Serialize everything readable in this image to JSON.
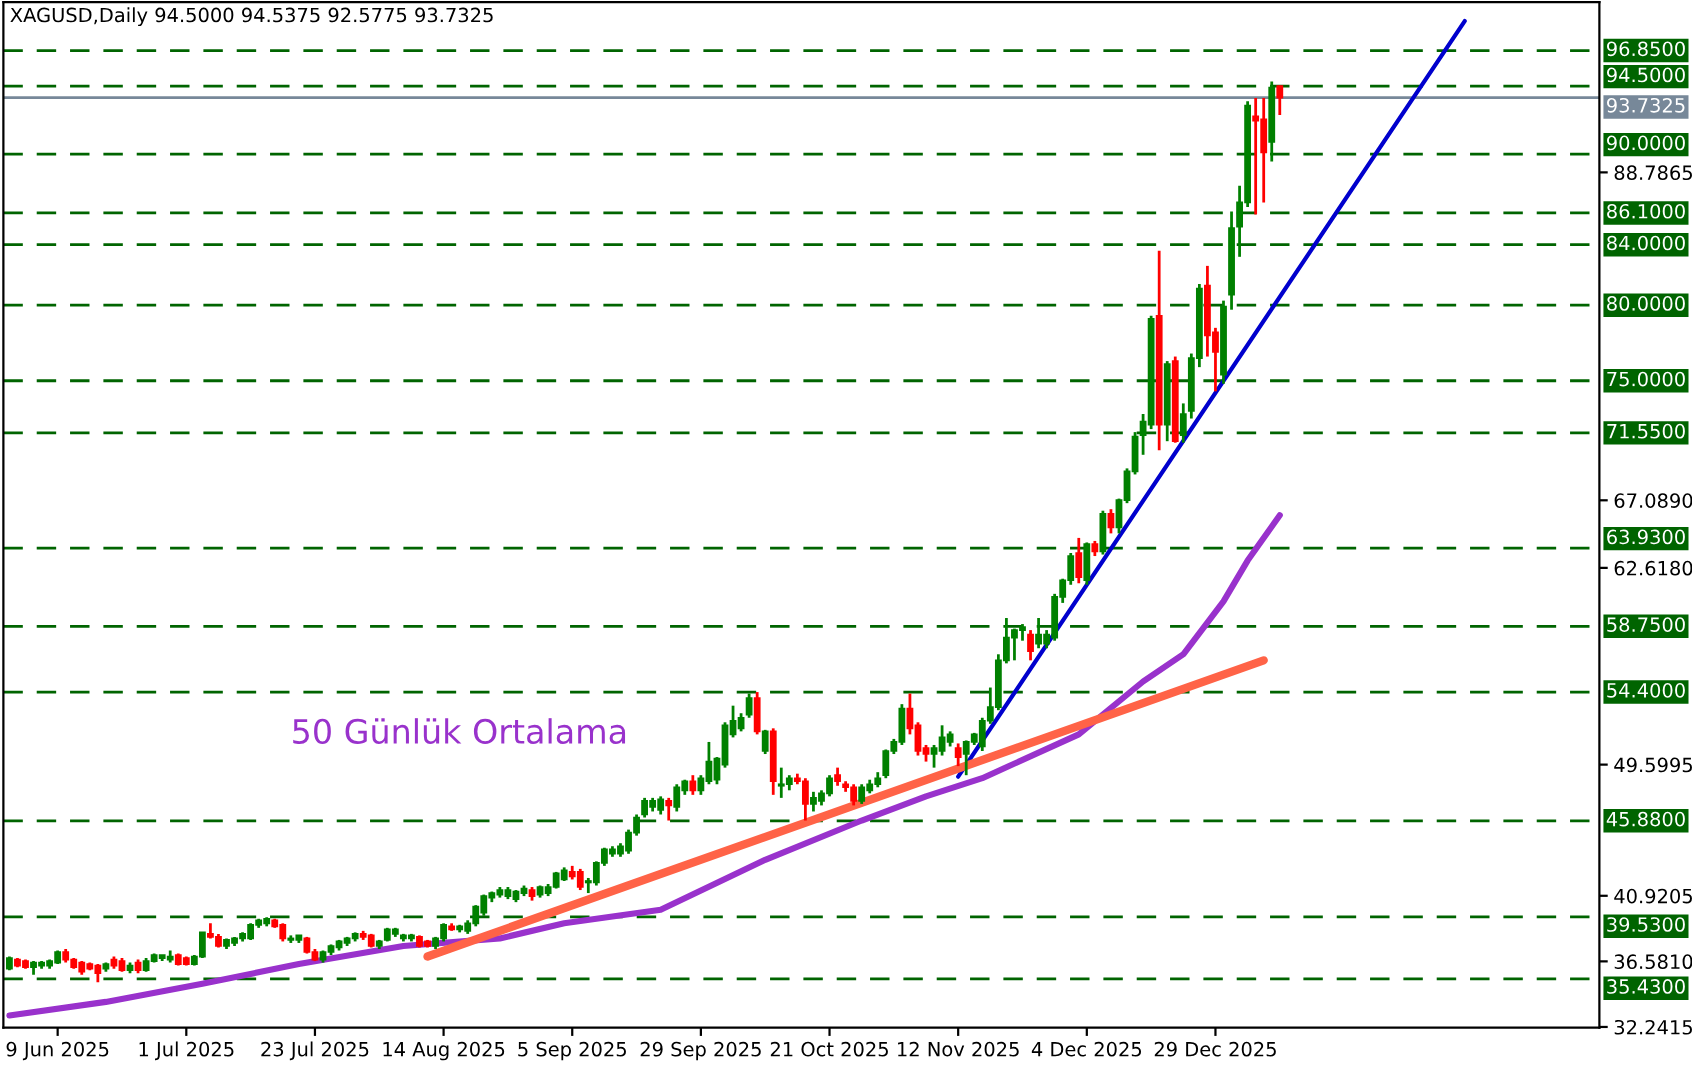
{
  "chart_data": {
    "type": "candlestick",
    "title": "XAGUSD,Daily 94.5000 94.5375 92.5775 93.7325",
    "categories": [
      null,
      null,
      null,
      null,
      null,
      null,
      "9 Jun 2025",
      null,
      null,
      null,
      null,
      null,
      null,
      null,
      null,
      null,
      null,
      null,
      null,
      null,
      null,
      null,
      "1 Jul 2025",
      null,
      null,
      null,
      null,
      null,
      null,
      null,
      null,
      null,
      null,
      null,
      null,
      null,
      null,
      null,
      "23 Jul 2025",
      null,
      null,
      null,
      null,
      null,
      null,
      null,
      null,
      null,
      null,
      null,
      null,
      null,
      null,
      null,
      "14 Aug 2025",
      null,
      null,
      null,
      null,
      null,
      null,
      null,
      null,
      null,
      null,
      null,
      null,
      null,
      null,
      null,
      "5 Sep 2025",
      null,
      null,
      null,
      null,
      null,
      null,
      null,
      null,
      null,
      null,
      null,
      null,
      null,
      null,
      null,
      "29 Sep 2025",
      null,
      null,
      null,
      null,
      null,
      null,
      null,
      null,
      null,
      null,
      null,
      null,
      null,
      null,
      null,
      "21 Oct 2025",
      null,
      null,
      null,
      null,
      null,
      null,
      null,
      null,
      null,
      null,
      null,
      null,
      null,
      null,
      null,
      "12 Nov 2025",
      null,
      null,
      null,
      null,
      null,
      null,
      null,
      null,
      null,
      null,
      null,
      null,
      null,
      null,
      null,
      "4 Dec 2025",
      null,
      null,
      null,
      null,
      null,
      null,
      null,
      null,
      null,
      null,
      null,
      null,
      null,
      null,
      null,
      "29 Dec 2025",
      null,
      null,
      null,
      null,
      null,
      null,
      null,
      null,
      null,
      null,
      null,
      null,
      null,
      null,
      null,
      null,
      null,
      null,
      null,
      null,
      null,
      null,
      null,
      null,
      null,
      null,
      null,
      null,
      null,
      null,
      null,
      null,
      null,
      null,
      null,
      null,
      null,
      null,
      null,
      null,
      null,
      null,
      null,
      null,
      null,
      null,
      null
    ],
    "ohlc": [
      [
        36.1,
        36.9,
        36.0,
        36.8
      ],
      [
        36.7,
        36.8,
        36.2,
        36.3
      ],
      [
        36.6,
        36.7,
        36.1,
        36.2
      ],
      [
        36.2,
        36.6,
        35.7,
        36.5
      ],
      [
        36.3,
        36.6,
        36.1,
        36.5
      ],
      [
        36.3,
        36.7,
        36.1,
        36.6
      ],
      [
        36.5,
        37.3,
        36.4,
        37.2
      ],
      [
        37.2,
        37.4,
        36.5,
        36.7
      ],
      [
        36.7,
        36.8,
        36.1,
        36.2
      ],
      [
        36.5,
        36.6,
        35.7,
        35.9
      ],
      [
        36.4,
        36.5,
        36.0,
        36.1
      ],
      [
        36.3,
        36.4,
        35.2,
        35.8
      ],
      [
        36.1,
        36.5,
        35.9,
        36.4
      ],
      [
        36.7,
        36.9,
        36.1,
        36.3
      ],
      [
        36.6,
        36.8,
        35.9,
        36.0
      ],
      [
        36.0,
        36.5,
        35.8,
        36.3
      ],
      [
        36.5,
        36.7,
        35.8,
        36.0
      ],
      [
        36.0,
        36.8,
        35.9,
        36.6
      ],
      [
        36.6,
        37.1,
        36.5,
        37.0
      ],
      [
        36.8,
        37.0,
        36.6,
        37.0
      ],
      [
        36.7,
        37.3,
        36.5,
        36.9
      ],
      [
        37.0,
        37.1,
        36.3,
        36.4
      ],
      [
        36.8,
        36.9,
        36.3,
        36.4
      ],
      [
        36.4,
        37.0,
        36.3,
        36.9
      ],
      [
        36.9,
        38.5,
        36.8,
        38.5
      ],
      [
        38.4,
        39.1,
        38.1,
        38.2
      ],
      [
        38.2,
        38.4,
        37.5,
        37.6
      ],
      [
        37.6,
        38.1,
        37.4,
        38.0
      ],
      [
        37.8,
        38.2,
        37.6,
        38.1
      ],
      [
        38.1,
        38.5,
        37.9,
        38.4
      ],
      [
        38.1,
        39.1,
        38.0,
        39.0
      ],
      [
        39.0,
        39.4,
        38.8,
        39.3
      ],
      [
        39.1,
        39.5,
        38.9,
        39.4
      ],
      [
        39.3,
        39.4,
        38.8,
        38.9
      ],
      [
        39.0,
        39.1,
        37.9,
        38.1
      ],
      [
        38.0,
        38.3,
        37.8,
        38.1
      ],
      [
        38.0,
        38.3,
        37.8,
        38.3
      ],
      [
        38.1,
        38.2,
        37.1,
        37.2
      ],
      [
        37.2,
        37.4,
        36.6,
        36.7
      ],
      [
        36.7,
        37.3,
        36.5,
        37.2
      ],
      [
        37.2,
        37.7,
        37.0,
        37.6
      ],
      [
        37.5,
        38.0,
        37.3,
        37.9
      ],
      [
        37.8,
        38.2,
        37.6,
        38.1
      ],
      [
        38.1,
        38.5,
        37.9,
        38.4
      ],
      [
        38.4,
        38.6,
        38.0,
        38.2
      ],
      [
        38.3,
        38.4,
        37.5,
        37.6
      ],
      [
        37.6,
        38.0,
        37.4,
        37.9
      ],
      [
        38.0,
        38.8,
        37.9,
        38.7
      ],
      [
        38.4,
        38.8,
        38.2,
        38.7
      ],
      [
        38.1,
        38.4,
        37.9,
        38.3
      ],
      [
        38.1,
        38.4,
        37.9,
        38.3
      ],
      [
        38.2,
        38.3,
        37.5,
        37.6
      ],
      [
        37.9,
        38.0,
        37.5,
        37.6
      ],
      [
        37.6,
        38.2,
        37.4,
        38.1
      ],
      [
        38.1,
        39.1,
        37.9,
        39.0
      ],
      [
        38.9,
        39.1,
        38.6,
        38.7
      ],
      [
        38.7,
        39.0,
        38.5,
        38.9
      ],
      [
        38.6,
        39.3,
        38.4,
        39.1
      ],
      [
        39.1,
        40.3,
        38.9,
        40.2
      ],
      [
        39.8,
        41.0,
        39.6,
        40.9
      ],
      [
        40.8,
        41.2,
        40.5,
        41.1
      ],
      [
        41.0,
        41.5,
        40.8,
        41.3
      ],
      [
        40.9,
        41.5,
        40.7,
        41.3
      ],
      [
        40.7,
        41.3,
        40.5,
        41.2
      ],
      [
        41.1,
        41.6,
        40.9,
        41.4
      ],
      [
        41.3,
        41.5,
        40.6,
        40.9
      ],
      [
        41.0,
        41.6,
        40.8,
        41.5
      ],
      [
        41.1,
        41.7,
        40.9,
        41.5
      ],
      [
        41.5,
        42.5,
        41.4,
        42.4
      ],
      [
        42.0,
        42.8,
        41.9,
        42.6
      ],
      [
        42.5,
        42.9,
        42.0,
        42.2
      ],
      [
        42.5,
        42.7,
        41.3,
        41.5
      ],
      [
        41.9,
        42.1,
        41.1,
        41.8
      ],
      [
        41.8,
        43.2,
        41.6,
        43.1
      ],
      [
        43.1,
        44.1,
        42.9,
        44.0
      ],
      [
        43.7,
        44.2,
        43.5,
        44.0
      ],
      [
        43.7,
        44.4,
        43.5,
        44.2
      ],
      [
        43.9,
        45.3,
        43.7,
        45.1
      ],
      [
        45.1,
        46.3,
        44.9,
        46.1
      ],
      [
        46.3,
        47.4,
        46.1,
        47.2
      ],
      [
        46.8,
        47.4,
        46.5,
        47.2
      ],
      [
        46.6,
        47.5,
        46.3,
        47.3
      ],
      [
        47.2,
        47.4,
        45.9,
        46.9
      ],
      [
        46.8,
        48.3,
        46.5,
        48.1
      ],
      [
        47.9,
        48.6,
        47.6,
        48.5
      ],
      [
        48.5,
        48.9,
        47.6,
        47.9
      ],
      [
        47.9,
        48.9,
        47.6,
        48.7
      ],
      [
        48.5,
        51.1,
        48.3,
        49.8
      ],
      [
        48.6,
        50.1,
        48.3,
        50.0
      ],
      [
        49.6,
        52.4,
        49.4,
        52.2
      ],
      [
        51.6,
        53.5,
        51.4,
        52.5
      ],
      [
        52.0,
        53.0,
        51.8,
        52.7
      ],
      [
        52.9,
        54.3,
        52.7,
        54.0
      ],
      [
        54.0,
        54.4,
        51.6,
        51.8
      ],
      [
        50.5,
        51.9,
        50.3,
        51.8
      ],
      [
        51.8,
        52.0,
        47.6,
        48.5
      ],
      [
        48.2,
        49.4,
        47.4,
        48.3
      ],
      [
        48.3,
        48.9,
        47.9,
        48.7
      ],
      [
        48.7,
        49.0,
        48.3,
        48.5
      ],
      [
        48.5,
        48.7,
        45.9,
        47.0
      ],
      [
        47.0,
        47.8,
        46.5,
        47.4
      ],
      [
        47.2,
        47.9,
        46.9,
        47.7
      ],
      [
        47.7,
        48.9,
        47.5,
        48.7
      ],
      [
        48.9,
        49.4,
        48.2,
        48.5
      ],
      [
        48.3,
        48.5,
        47.8,
        48.1
      ],
      [
        48.1,
        48.3,
        46.9,
        47.2
      ],
      [
        47.2,
        48.3,
        47.0,
        48.1
      ],
      [
        47.9,
        48.6,
        47.7,
        48.3
      ],
      [
        48.3,
        49.1,
        48.1,
        48.7
      ],
      [
        48.9,
        50.6,
        48.7,
        50.5
      ],
      [
        50.5,
        51.3,
        50.3,
        51.1
      ],
      [
        51.1,
        53.6,
        50.9,
        53.3
      ],
      [
        53.3,
        54.3,
        51.6,
        52.0
      ],
      [
        52.2,
        52.4,
        50.2,
        50.5
      ],
      [
        50.7,
        50.9,
        49.8,
        50.3
      ],
      [
        50.3,
        50.9,
        49.4,
        50.7
      ],
      [
        50.5,
        52.2,
        50.2,
        51.4
      ],
      [
        51.1,
        51.8,
        50.8,
        51.6
      ],
      [
        50.7,
        51.0,
        49.5,
        50.1
      ],
      [
        50.3,
        51.2,
        48.9,
        51.1
      ],
      [
        51.1,
        51.7,
        50.9,
        51.6
      ],
      [
        50.8,
        52.7,
        50.5,
        52.5
      ],
      [
        52.5,
        54.7,
        52.3,
        53.4
      ],
      [
        53.4,
        56.9,
        53.2,
        56.5
      ],
      [
        56.5,
        59.3,
        56.3,
        58.0
      ],
      [
        58.0,
        58.6,
        56.5,
        58.5
      ],
      [
        58.5,
        58.9,
        57.8,
        58.7
      ],
      [
        58.2,
        58.5,
        56.5,
        57.1
      ],
      [
        57.6,
        59.3,
        57.3,
        58.2
      ],
      [
        57.6,
        58.5,
        57.3,
        58.2
      ],
      [
        58.0,
        60.9,
        57.8,
        60.7
      ],
      [
        60.7,
        61.9,
        60.3,
        61.8
      ],
      [
        61.8,
        63.6,
        61.5,
        63.4
      ],
      [
        63.6,
        64.6,
        61.6,
        62.0
      ],
      [
        61.8,
        64.3,
        61.5,
        64.2
      ],
      [
        64.2,
        64.4,
        63.4,
        63.7
      ],
      [
        63.7,
        66.4,
        63.5,
        66.2
      ],
      [
        66.2,
        66.5,
        64.9,
        65.3
      ],
      [
        65.3,
        67.2,
        64.9,
        67.1
      ],
      [
        67.1,
        69.2,
        66.9,
        69.0
      ],
      [
        69.0,
        71.6,
        68.8,
        71.3
      ],
      [
        71.4,
        72.8,
        70.1,
        72.3
      ],
      [
        72.1,
        79.3,
        71.8,
        79.1
      ],
      [
        79.3,
        83.6,
        70.4,
        72.1
      ],
      [
        72.1,
        76.3,
        71.0,
        76.1
      ],
      [
        76.3,
        76.6,
        70.9,
        71.0
      ],
      [
        71.4,
        73.5,
        70.9,
        72.8
      ],
      [
        73.0,
        76.8,
        72.5,
        76.5
      ],
      [
        76.5,
        81.4,
        75.9,
        81.1
      ],
      [
        81.3,
        82.6,
        76.6,
        78.0
      ],
      [
        78.2,
        78.5,
        74.3,
        76.9
      ],
      [
        75.4,
        80.3,
        74.8,
        79.9
      ],
      [
        80.7,
        86.2,
        79.7,
        85.1
      ],
      [
        85.2,
        87.9,
        83.2,
        86.8
      ],
      [
        86.8,
        93.5,
        86.5,
        93.2
      ],
      [
        92.5,
        93.7,
        86.0,
        92.2
      ],
      [
        92.3,
        93.7,
        86.8,
        90.1
      ],
      [
        90.8,
        94.8,
        89.5,
        94.4
      ],
      [
        94.5,
        94.5375,
        92.5775,
        93.7325
      ],
      null,
      null,
      null,
      null,
      null,
      null,
      null,
      null,
      null,
      null,
      null,
      null,
      null,
      null,
      null,
      null,
      null,
      null,
      null,
      null,
      null,
      null,
      null,
      null,
      null,
      null,
      null,
      null,
      null,
      null,
      null,
      null,
      null,
      null,
      null,
      null,
      null,
      null,
      null
    ],
    "colors": [
      "#008000",
      "#ff0000",
      "#ff0000",
      "#008000",
      "#008000",
      "#008000",
      "#008000",
      "#ff0000",
      "#ff0000",
      "#ff0000",
      "#ff0000",
      "#ff0000",
      "#008000",
      "#ff0000",
      "#ff0000",
      "#008000",
      "#ff0000",
      "#008000",
      "#008000",
      "#008000",
      "#008000",
      "#ff0000",
      "#ff0000",
      "#008000",
      "#008000",
      "#ff0000",
      "#ff0000",
      "#008000",
      "#008000",
      "#008000",
      "#008000",
      "#008000",
      "#008000",
      "#ff0000",
      "#ff0000",
      "#008000",
      "#008000",
      "#ff0000",
      "#ff0000",
      "#008000",
      "#008000",
      "#008000",
      "#008000",
      "#008000",
      "#ff0000",
      "#ff0000",
      "#008000",
      "#008000",
      "#008000",
      "#008000",
      "#008000",
      "#ff0000",
      "#ff0000",
      "#008000",
      "#008000",
      "#ff0000",
      "#008000",
      "#008000",
      "#008000",
      "#008000",
      "#008000",
      "#008000",
      "#008000",
      "#008000",
      "#008000",
      "#ff0000",
      "#008000",
      "#008000",
      "#008000",
      "#008000",
      "#ff0000",
      "#ff0000",
      "#008000",
      "#008000",
      "#008000",
      "#008000",
      "#008000",
      "#008000",
      "#008000",
      "#008000",
      "#008000",
      "#008000",
      "#ff0000",
      "#008000",
      "#008000",
      "#ff0000",
      "#008000",
      "#008000",
      "#008000",
      "#008000",
      "#008000",
      "#008000",
      "#008000",
      "#ff0000",
      "#008000",
      "#ff0000",
      "#008000",
      "#008000",
      "#ff0000",
      "#ff0000",
      "#008000",
      "#008000",
      "#008000",
      "#ff0000",
      "#ff0000",
      "#ff0000",
      "#008000",
      "#008000",
      "#008000",
      "#008000",
      "#008000",
      "#008000",
      "#ff0000",
      "#ff0000",
      "#ff0000",
      "#008000",
      "#008000",
      "#008000",
      "#ff0000",
      "#008000",
      "#008000",
      "#008000",
      "#008000",
      "#008000",
      "#008000",
      "#008000",
      "#008000",
      "#ff0000",
      "#008000",
      "#008000",
      "#008000",
      "#008000",
      "#008000",
      "#ff0000",
      "#008000",
      "#ff0000",
      "#008000",
      "#ff0000",
      "#008000",
      "#008000",
      "#008000",
      "#008000",
      "#008000",
      "#ff0000",
      "#008000",
      "#ff0000",
      "#008000",
      "#008000",
      "#008000",
      "#ff0000",
      "#ff0000",
      "#008000",
      "#008000",
      "#008000",
      "#008000",
      "#ff0000",
      "#ff0000",
      "#008000",
      "#ff0000",
      null,
      null,
      null,
      null,
      null,
      null,
      null,
      null,
      null,
      null,
      null,
      null,
      null,
      null,
      null,
      null,
      null,
      null,
      null,
      null,
      null,
      null,
      null,
      null,
      null,
      null,
      null,
      null,
      null,
      null,
      null,
      null,
      null,
      null,
      null,
      null,
      null,
      null,
      null
    ],
    "series": [
      {
        "type": "line",
        "name": "50 Günlük Ortalama",
        "color": "#9932cc",
        "values": [
          33.0,
          null,
          null,
          null,
          null,
          null,
          null,
          null,
          null,
          null,
          null,
          null,
          33.9,
          null,
          null,
          null,
          null,
          null,
          null,
          null,
          null,
          null,
          null,
          null,
          35.1,
          null,
          null,
          null,
          null,
          null,
          null,
          null,
          null,
          null,
          null,
          null,
          36.4,
          null,
          null,
          null,
          null,
          null,
          null,
          null,
          null,
          null,
          null,
          null,
          null,
          37.6,
          null,
          null,
          null,
          null,
          null,
          null,
          null,
          null,
          null,
          null,
          null,
          38.1,
          null,
          null,
          null,
          null,
          null,
          null,
          null,
          39.1,
          null,
          null,
          null,
          null,
          null,
          null,
          null,
          null,
          null,
          null,
          null,
          40.0,
          null,
          null,
          null,
          null,
          null,
          null,
          null,
          null,
          null,
          null,
          null,
          null,
          43.3,
          null,
          null,
          null,
          null,
          null,
          null,
          null,
          null,
          null,
          null,
          null,
          45.9,
          null,
          null,
          null,
          null,
          null,
          null,
          null,
          47.5,
          null,
          null,
          null,
          null,
          null,
          null,
          48.7,
          null,
          null,
          null,
          null,
          null,
          null,
          null,
          null,
          null,
          null,
          null,
          51.6,
          null,
          null,
          null,
          null,
          null,
          null,
          null,
          55.1,
          null,
          null,
          null,
          null,
          56.9,
          null,
          null,
          null,
          null,
          60.4,
          null,
          null,
          63.1,
          null,
          null,
          null,
          66.1,
          null,
          null,
          null,
          null,
          null,
          null,
          null,
          null,
          null,
          null,
          null,
          null,
          null,
          null,
          null,
          null,
          null,
          null,
          null,
          null,
          null,
          null,
          null,
          null,
          null,
          null,
          null,
          null,
          null,
          null,
          null,
          null,
          null,
          null,
          null,
          null,
          null,
          null,
          null
        ]
      },
      {
        "type": "line",
        "color": "#0000cd",
        "values": [
          null,
          null,
          null,
          null,
          null,
          null,
          null,
          null,
          null,
          null,
          null,
          null,
          null,
          null,
          null,
          null,
          null,
          null,
          null,
          null,
          null,
          null,
          null,
          null,
          null,
          null,
          null,
          null,
          null,
          null,
          null,
          null,
          null,
          null,
          null,
          null,
          null,
          null,
          null,
          null,
          null,
          null,
          null,
          null,
          null,
          null,
          null,
          null,
          null,
          null,
          null,
          null,
          null,
          null,
          null,
          null,
          null,
          null,
          null,
          null,
          null,
          null,
          null,
          null,
          null,
          null,
          null,
          null,
          null,
          null,
          null,
          null,
          null,
          null,
          null,
          null,
          null,
          null,
          null,
          null,
          null,
          null,
          null,
          null,
          null,
          null,
          null,
          null,
          null,
          null,
          null,
          null,
          null,
          null,
          null,
          null,
          null,
          null,
          null,
          null,
          null,
          null,
          null,
          null,
          null,
          null,
          null,
          null,
          null,
          null,
          null,
          null,
          null,
          null,
          null,
          null,
          null,
          null,
          48.8,
          null,
          null,
          null,
          null,
          null,
          null,
          null,
          null,
          null,
          null,
          null,
          null,
          null,
          null,
          null,
          null,
          null,
          null,
          null,
          null,
          null,
          null,
          null,
          null,
          null,
          null,
          null,
          null,
          null,
          null,
          null,
          null,
          null,
          null,
          null,
          null,
          null,
          null,
          null,
          null,
          null,
          null,
          null,
          null,
          null,
          null,
          null,
          null,
          null,
          null,
          null,
          null,
          null,
          null,
          null,
          null,
          null,
          null,
          null,
          null,
          null,
          null,
          98.8,
          null,
          null,
          null,
          null,
          null,
          null,
          null,
          null,
          null,
          null,
          null,
          null,
          null,
          null,
          null,
          null
        ]
      },
      {
        "type": "line",
        "color": "#ff6347",
        "values": [
          null,
          null,
          null,
          null,
          null,
          null,
          null,
          null,
          null,
          null,
          null,
          null,
          null,
          null,
          null,
          null,
          null,
          null,
          null,
          null,
          null,
          null,
          null,
          null,
          null,
          null,
          null,
          null,
          null,
          null,
          null,
          null,
          null,
          null,
          null,
          null,
          null,
          null,
          null,
          null,
          null,
          null,
          null,
          null,
          null,
          null,
          null,
          null,
          null,
          null,
          null,
          null,
          36.9,
          null,
          null,
          null,
          null,
          null,
          null,
          null,
          null,
          null,
          null,
          null,
          null,
          null,
          null,
          null,
          null,
          null,
          null,
          null,
          null,
          null,
          null,
          null,
          null,
          null,
          null,
          null,
          null,
          null,
          null,
          null,
          null,
          null,
          null,
          null,
          null,
          null,
          null,
          null,
          null,
          null,
          null,
          null,
          null,
          null,
          null,
          null,
          null,
          null,
          null,
          null,
          null,
          null,
          null,
          null,
          null,
          null,
          null,
          null,
          null,
          null,
          null,
          null,
          null,
          null,
          null,
          null,
          null,
          null,
          null,
          null,
          null,
          null,
          null,
          null,
          null,
          null,
          null,
          null,
          null,
          null,
          null,
          null,
          null,
          null,
          null,
          null,
          null,
          null,
          null,
          null,
          null,
          null,
          null,
          null,
          null,
          null,
          null,
          null,
          null,
          null,
          null,
          null,
          56.5,
          null,
          null,
          null,
          null,
          null,
          null,
          null,
          null,
          null,
          null,
          null,
          null,
          null,
          null,
          null,
          null,
          null,
          null,
          null,
          null,
          null,
          null,
          null,
          null,
          null,
          null,
          null,
          null,
          null,
          null,
          null,
          null,
          null,
          null,
          null,
          null,
          null,
          null,
          null,
          null,
          null
        ]
      }
    ],
    "ylim": [
      32.2,
      100.05
    ],
    "yticks": [
      32.2415,
      {
        "value": 36.581,
        "label": "36.5810"
      },
      40.9205,
      49.5995,
      {
        "value": 62.618,
        "label": "62.6180"
      },
      {
        "value": 67.089,
        "label": "67.0890"
      },
      88.7865
    ],
    "ref_lines": [
      {
        "axis": "y",
        "value": 96.85,
        "label": "96.8500",
        "color": "#006400",
        "line_style": "dashed"
      },
      {
        "axis": "y",
        "value": 94.5,
        "label": "94.5000",
        "color": "#006400",
        "line_style": "dashed"
      },
      {
        "axis": "y",
        "value": 93.7325,
        "label": "93.7325",
        "color": "#778899",
        "line_style": "solid"
      },
      {
        "axis": "y",
        "value": 90.0,
        "label": "90.0000",
        "color": "#006400",
        "line_style": "dashed"
      },
      {
        "axis": "y",
        "value": 86.1,
        "label": "86.1000",
        "color": "#006400",
        "line_style": "dashed"
      },
      {
        "axis": "y",
        "value": 84.0,
        "label": "84.0000",
        "color": "#006400",
        "line_style": "dashed"
      },
      {
        "axis": "y",
        "value": 80.0,
        "label": "80.0000",
        "color": "#006400",
        "line_style": "dashed"
      },
      {
        "axis": "y",
        "value": 75.0,
        "label": "75.0000",
        "color": "#006400",
        "line_style": "dashed"
      },
      {
        "axis": "y",
        "value": 71.55,
        "label": "71.5500",
        "color": "#006400",
        "line_style": "dashed"
      },
      {
        "axis": "y",
        "value": 63.93,
        "label": "63.9300",
        "color": "#006400",
        "line_style": "dashed"
      },
      {
        "axis": "y",
        "value": 58.75,
        "label": "58.7500",
        "color": "#006400",
        "line_style": "dashed"
      },
      {
        "axis": "y",
        "value": 54.4,
        "label": "54.4000",
        "color": "#006400",
        "line_style": "dashed"
      },
      {
        "axis": "y",
        "value": 45.88,
        "label": "45.8800",
        "color": "#006400",
        "line_style": "dashed"
      },
      {
        "axis": "y",
        "value": 39.53,
        "label": "39.5300",
        "color": "#006400",
        "line_style": "dashed"
      },
      {
        "axis": "y",
        "value": 35.43,
        "label": "35.4300",
        "color": "#006400",
        "line_style": "dashed"
      }
    ],
    "grid": false,
    "legend": false
  }
}
